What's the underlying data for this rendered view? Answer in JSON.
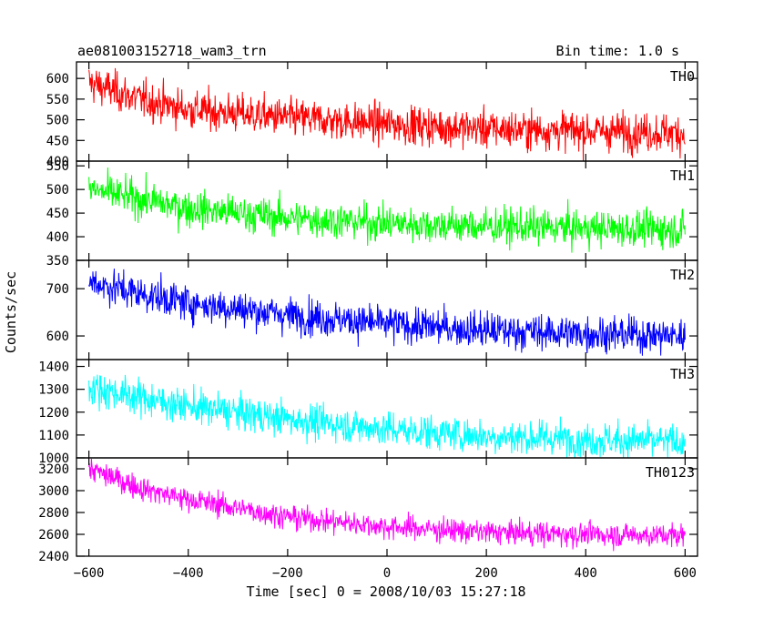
{
  "chart_data": {
    "type": "line",
    "title_left": "ae081003152718_wam3_trn",
    "title_right": "Bin time: 1.0 s",
    "xlabel": "Time [sec] 0 = 2008/10/03 15:27:18",
    "ylabel": "Counts/sec",
    "xlim": [
      -625,
      625
    ],
    "x_ticks": [
      -600,
      -400,
      -200,
      0,
      200,
      400,
      600
    ],
    "x_tick_labels": [
      "−600",
      "−400",
      "−200",
      "0",
      "200",
      "400",
      "600"
    ],
    "x_range": [
      -600,
      600
    ],
    "panels": [
      {
        "name": "TH0",
        "color": "#ff0000",
        "ylim": [
          400,
          640
        ],
        "y_ticks": [
          400,
          450,
          500,
          550,
          600
        ],
        "y_tick_labels": [
          "400",
          "450",
          "500",
          "550",
          "600"
        ],
        "trend": [
          [
            -600,
            590
          ],
          [
            -500,
            550
          ],
          [
            -400,
            525
          ],
          [
            -200,
            505
          ],
          [
            0,
            490
          ],
          [
            200,
            478
          ],
          [
            400,
            473
          ],
          [
            600,
            468
          ]
        ],
        "noise": 55
      },
      {
        "name": "TH1",
        "color": "#00ff00",
        "ylim": [
          350,
          560
        ],
        "y_ticks": [
          350,
          400,
          450,
          500,
          550
        ],
        "y_tick_labels": [
          "350",
          "400",
          "450",
          "500",
          "550"
        ],
        "trend": [
          [
            -600,
            500
          ],
          [
            -500,
            480
          ],
          [
            -400,
            460
          ],
          [
            -200,
            440
          ],
          [
            0,
            428
          ],
          [
            200,
            422
          ],
          [
            400,
            418
          ],
          [
            600,
            415
          ]
        ],
        "noise": 45
      },
      {
        "name": "TH2",
        "color": "#0000ff",
        "ylim": [
          550,
          760
        ],
        "y_ticks": [
          600,
          700
        ],
        "y_tick_labels": [
          "600",
          "700"
        ],
        "trend": [
          [
            -600,
            715
          ],
          [
            -500,
            690
          ],
          [
            -400,
            670
          ],
          [
            -200,
            645
          ],
          [
            0,
            625
          ],
          [
            200,
            612
          ],
          [
            400,
            605
          ],
          [
            600,
            600
          ]
        ],
        "noise": 45
      },
      {
        "name": "TH3",
        "color": "#00ffff",
        "ylim": [
          1000,
          1430
        ],
        "y_ticks": [
          1000,
          1100,
          1200,
          1300,
          1400
        ],
        "y_tick_labels": [
          "1000",
          "1100",
          "1200",
          "1300",
          "1400"
        ],
        "trend": [
          [
            -600,
            1310
          ],
          [
            -500,
            1265
          ],
          [
            -400,
            1225
          ],
          [
            -200,
            1170
          ],
          [
            0,
            1125
          ],
          [
            200,
            1095
          ],
          [
            400,
            1080
          ],
          [
            600,
            1070
          ]
        ],
        "noise": 90
      },
      {
        "name": "TH0123",
        "color": "#ff00ff",
        "ylim": [
          2400,
          3300
        ],
        "y_ticks": [
          2400,
          2600,
          2800,
          3000,
          3200
        ],
        "y_tick_labels": [
          "2400",
          "2600",
          "2800",
          "3000",
          "3200"
        ],
        "trend": [
          [
            -600,
            3200
          ],
          [
            -500,
            3030
          ],
          [
            -400,
            2920
          ],
          [
            -200,
            2760
          ],
          [
            0,
            2670
          ],
          [
            200,
            2620
          ],
          [
            400,
            2600
          ],
          [
            600,
            2590
          ]
        ],
        "noise": 130
      }
    ]
  }
}
